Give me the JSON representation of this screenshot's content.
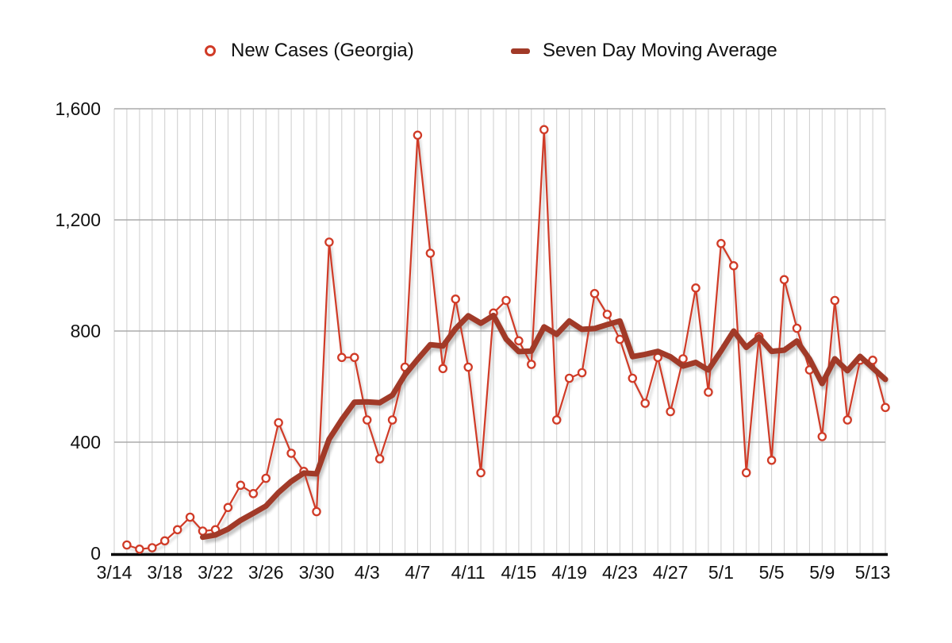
{
  "legend": {
    "items": [
      {
        "label": "New Cases (Georgia)",
        "marker": "open-circle",
        "color": "#d03b27"
      },
      {
        "label": "Seven Day Moving Average",
        "marker": "thick-line-segment",
        "color": "#a13a28"
      }
    ]
  },
  "colors": {
    "background": "#ffffff",
    "grid_vertical": "#cdcdcd",
    "grid_horizontal": "#ababab",
    "axis": "#000000",
    "daily_series": "#d03b27",
    "moving_average_series": "#a13a28",
    "text": "#111111"
  },
  "chart_data": {
    "type": "line",
    "title": "",
    "xlabel": "",
    "ylabel": "",
    "ylim": [
      0,
      1600
    ],
    "grid": {
      "vertical": "daily",
      "horizontal_interval": 400,
      "legend_position": "top"
    },
    "x_start_date": "3/14",
    "x_end_date": "5/14",
    "x_total_days": 61,
    "y_ticks": [
      {
        "label": "0",
        "value": 0
      },
      {
        "label": "400",
        "value": 400
      },
      {
        "label": "800",
        "value": 800
      },
      {
        "label": "1,200",
        "value": 1200
      },
      {
        "label": "1,600",
        "value": 1600
      }
    ],
    "x_ticks": [
      {
        "label": "3/14",
        "day": 0
      },
      {
        "label": "3/18",
        "day": 4
      },
      {
        "label": "3/22",
        "day": 8
      },
      {
        "label": "3/26",
        "day": 12
      },
      {
        "label": "3/30",
        "day": 16
      },
      {
        "label": "4/3",
        "day": 20
      },
      {
        "label": "4/7",
        "day": 24
      },
      {
        "label": "4/11",
        "day": 28
      },
      {
        "label": "4/15",
        "day": 32
      },
      {
        "label": "4/19",
        "day": 36
      },
      {
        "label": "4/23",
        "day": 40
      },
      {
        "label": "4/27",
        "day": 44
      },
      {
        "label": "5/1",
        "day": 48
      },
      {
        "label": "5/5",
        "day": 52
      },
      {
        "label": "5/9",
        "day": 56
      },
      {
        "label": "5/13",
        "day": 60
      }
    ],
    "series": [
      {
        "name": "New Cases (Georgia)",
        "style": "thin-line-open-circle-markers",
        "color": "#d03b27",
        "start_date": "3/15",
        "first_day_index": 1,
        "dates": [
          "3/15",
          "3/16",
          "3/17",
          "3/18",
          "3/19",
          "3/20",
          "3/21",
          "3/22",
          "3/23",
          "3/24",
          "3/25",
          "3/26",
          "3/27",
          "3/28",
          "3/29",
          "3/30",
          "3/31",
          "4/1",
          "4/2",
          "4/3",
          "4/4",
          "4/5",
          "4/6",
          "4/7",
          "4/8",
          "4/9",
          "4/10",
          "4/11",
          "4/12",
          "4/13",
          "4/14",
          "4/15",
          "4/16",
          "4/17",
          "4/18",
          "4/19",
          "4/20",
          "4/21",
          "4/22",
          "4/23",
          "4/24",
          "4/25",
          "4/26",
          "4/27",
          "4/28",
          "4/29",
          "4/30",
          "5/1",
          "5/2",
          "5/3",
          "5/4",
          "5/5",
          "5/6",
          "5/7",
          "5/8",
          "5/9",
          "5/10",
          "5/11",
          "5/12",
          "5/13",
          "5/14"
        ],
        "values": [
          30,
          15,
          20,
          45,
          85,
          130,
          80,
          85,
          165,
          245,
          215,
          270,
          470,
          360,
          295,
          150,
          1120,
          705,
          705,
          480,
          340,
          480,
          670,
          1505,
          1080,
          665,
          915,
          670,
          290,
          865,
          910,
          765,
          680,
          1525,
          480,
          630,
          650,
          935,
          860,
          770,
          630,
          540,
          705,
          510,
          700,
          955,
          580,
          1115,
          1035,
          290,
          780,
          335,
          985,
          810,
          660,
          420,
          910,
          480,
          695,
          695,
          525
        ]
      },
      {
        "name": "Seven Day Moving Average",
        "style": "thick-line",
        "color": "#a13a28",
        "start_date": "3/21",
        "first_day_index": 7,
        "values": [
          58,
          66,
          87,
          119,
          144,
          170,
          219,
          259,
          289,
          286,
          411,
          481,
          544,
          545,
          542,
          569,
          643,
          698,
          751,
          746,
          808,
          855,
          828,
          856,
          771,
          726,
          728,
          815,
          788,
          836,
          806,
          809,
          823,
          836,
          708,
          716,
          727,
          707,
          674,
          687,
          660,
          729,
          800,
          741,
          779,
          727,
          731,
          764,
          699,
          611,
          700,
          657,
          709,
          667,
          626
        ]
      }
    ]
  }
}
